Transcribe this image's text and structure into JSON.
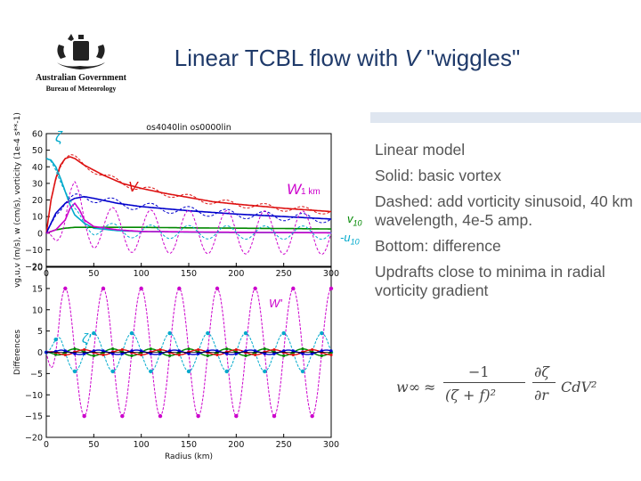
{
  "slide": {
    "title_prefix": "Linear TCBL flow with ",
    "title_italic": "V",
    "title_suffix": " \"wiggles\"",
    "logo_line1": "Australian Government",
    "logo_line2": "Bureau of Meteorology"
  },
  "bullets": [
    "Linear model",
    "Solid: basic vortex",
    "Dashed: add vorticity sinusoid, 40 km wavelength, 4e-5 amp.",
    "Bottom: difference",
    "Updrafts close to minima in radial vorticity gradient"
  ],
  "formula": {
    "lhs": "w∞",
    "approx": "≈",
    "numerator": "−1",
    "denominator": "(ζ + f)²",
    "partial": "∂ζ",
    "partial_den": "∂r",
    "tail": "CdV²"
  },
  "chart_data": [
    {
      "type": "line",
      "title": "os4040lin os0000lin",
      "ylabel": "vg,u,v (m/s), w (cm/s), vorticity (1e-4 s**-1)",
      "xlabel": "",
      "xlim": [
        0,
        300
      ],
      "ylim": [
        -20,
        60
      ],
      "xticks": [
        0,
        50,
        100,
        150,
        200,
        250,
        300
      ],
      "yticks": [
        -20,
        -10,
        0,
        10,
        20,
        30,
        40,
        50,
        60
      ],
      "annotations": {
        "zeta": "ζ",
        "v": "V",
        "w": "W",
        "w_sub": "1 km",
        "v10": "v",
        "v10_sub": "10",
        "u10": "-u",
        "u10_sub": "10"
      },
      "colors": {
        "v": "#dd1111",
        "vg": "#0000cc",
        "w": "#cc00cc",
        "zeta": "#00aacc",
        "green": "#008800"
      },
      "series": [
        {
          "key": "v",
          "style": "solid",
          "x": [
            0,
            5,
            10,
            15,
            20,
            25,
            30,
            40,
            50,
            60,
            80,
            100,
            125,
            150,
            175,
            200,
            250,
            300
          ],
          "y": [
            0,
            20,
            33,
            41,
            45,
            46,
            45,
            41,
            38,
            35,
            30,
            27,
            24,
            21.5,
            19,
            17.5,
            15,
            13
          ]
        },
        {
          "key": "vg",
          "style": "solid",
          "x": [
            0,
            10,
            20,
            30,
            40,
            50,
            75,
            100,
            150,
            200,
            250,
            300
          ],
          "y": [
            0,
            12,
            18,
            21,
            22,
            21,
            18,
            16,
            13.5,
            11.5,
            10,
            8.5
          ]
        },
        {
          "key": "zeta",
          "style": "solid",
          "x": [
            0,
            5,
            10,
            15,
            20,
            25,
            30,
            40,
            50,
            75,
            100,
            150,
            200,
            300
          ],
          "y": [
            45,
            44,
            40,
            33,
            25,
            17,
            11,
            6,
            3,
            1.5,
            1,
            0.6,
            0.4,
            0.3
          ]
        },
        {
          "key": "green",
          "style": "solid",
          "x": [
            0,
            10,
            20,
            30,
            40,
            60,
            100,
            150,
            200,
            250,
            300
          ],
          "y": [
            0,
            2,
            3,
            3.5,
            3.5,
            3.5,
            3.5,
            3.2,
            3,
            2.8,
            2.5
          ]
        },
        {
          "key": "w",
          "style": "solid",
          "x": [
            0,
            10,
            20,
            25,
            30,
            35,
            40,
            50,
            75,
            100,
            200,
            300
          ],
          "y": [
            0,
            2,
            8,
            15,
            18,
            14,
            8,
            4,
            2,
            1,
            0.5,
            0.2
          ]
        },
        {
          "key": "v",
          "style": "dashed",
          "x": [
            0,
            5,
            10,
            15,
            20,
            25,
            30,
            40,
            50,
            60,
            80,
            100,
            125,
            150,
            175,
            200,
            250,
            300
          ],
          "y": [
            0,
            20,
            33,
            41,
            45,
            46,
            45,
            41,
            38,
            35,
            30,
            27,
            24,
            21.5,
            19,
            17.5,
            15,
            13
          ],
          "wave": 1.8
        },
        {
          "key": "vg",
          "style": "dashed",
          "x": [
            0,
            10,
            20,
            30,
            40,
            50,
            75,
            100,
            150,
            200,
            250,
            300
          ],
          "y": [
            0,
            12,
            18,
            21,
            22,
            21,
            18,
            16,
            13.5,
            11.5,
            10,
            8.5
          ],
          "wave": 2.5
        },
        {
          "key": "w",
          "style": "dashed",
          "x": [
            0,
            10,
            20,
            25,
            30,
            35,
            40,
            50,
            75,
            100,
            200,
            300
          ],
          "y": [
            0,
            2,
            8,
            15,
            18,
            14,
            8,
            4,
            2,
            1,
            0.5,
            0.2
          ],
          "wave": 13
        },
        {
          "key": "zeta",
          "style": "dashed",
          "x": [
            0,
            5,
            10,
            15,
            20,
            25,
            30,
            40,
            50,
            75,
            100,
            150,
            200,
            300
          ],
          "y": [
            45,
            44,
            40,
            33,
            25,
            17,
            11,
            6,
            3,
            1.5,
            1,
            0.6,
            0.4,
            0.3
          ],
          "wave": 4
        }
      ]
    },
    {
      "type": "line",
      "title": "",
      "ylabel": "Differences",
      "xlabel": "Radius (km)",
      "xlim": [
        0,
        300
      ],
      "ylim": [
        -20,
        20
      ],
      "xticks": [
        0,
        50,
        100,
        150,
        200,
        250,
        300
      ],
      "yticks": [
        -20,
        -15,
        -10,
        -5,
        0,
        5,
        10,
        15,
        20
      ],
      "annotations": {
        "w": "W'",
        "zeta": "ζ'"
      },
      "colors": {
        "w": "#cc00cc",
        "zeta": "#00aacc",
        "green": "#008800",
        "red": "#dd1111",
        "blue": "#0000cc"
      },
      "series": [
        {
          "key": "w",
          "amp": 15,
          "wavelength": 40,
          "phase": 10
        },
        {
          "key": "zeta",
          "amp": 4.5,
          "wavelength": 40,
          "phase": 0
        },
        {
          "key": "green",
          "amp": 0.8,
          "wavelength": 40,
          "phase": 20
        },
        {
          "key": "red",
          "amp": 0.6,
          "wavelength": 40,
          "phase": 30
        },
        {
          "key": "blue",
          "amp": 0.5,
          "wavelength": 40,
          "phase": 5
        }
      ]
    }
  ]
}
